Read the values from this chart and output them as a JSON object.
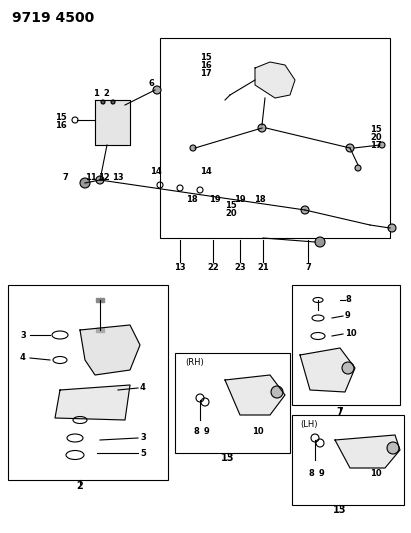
{
  "title": "9719 4500",
  "bg_color": "#ffffff",
  "line_color": "#000000",
  "title_fontsize": 10,
  "label_fontsize": 7.5,
  "bold_labels": true,
  "fig_width": 4.11,
  "fig_height": 5.33,
  "dpi": 100
}
